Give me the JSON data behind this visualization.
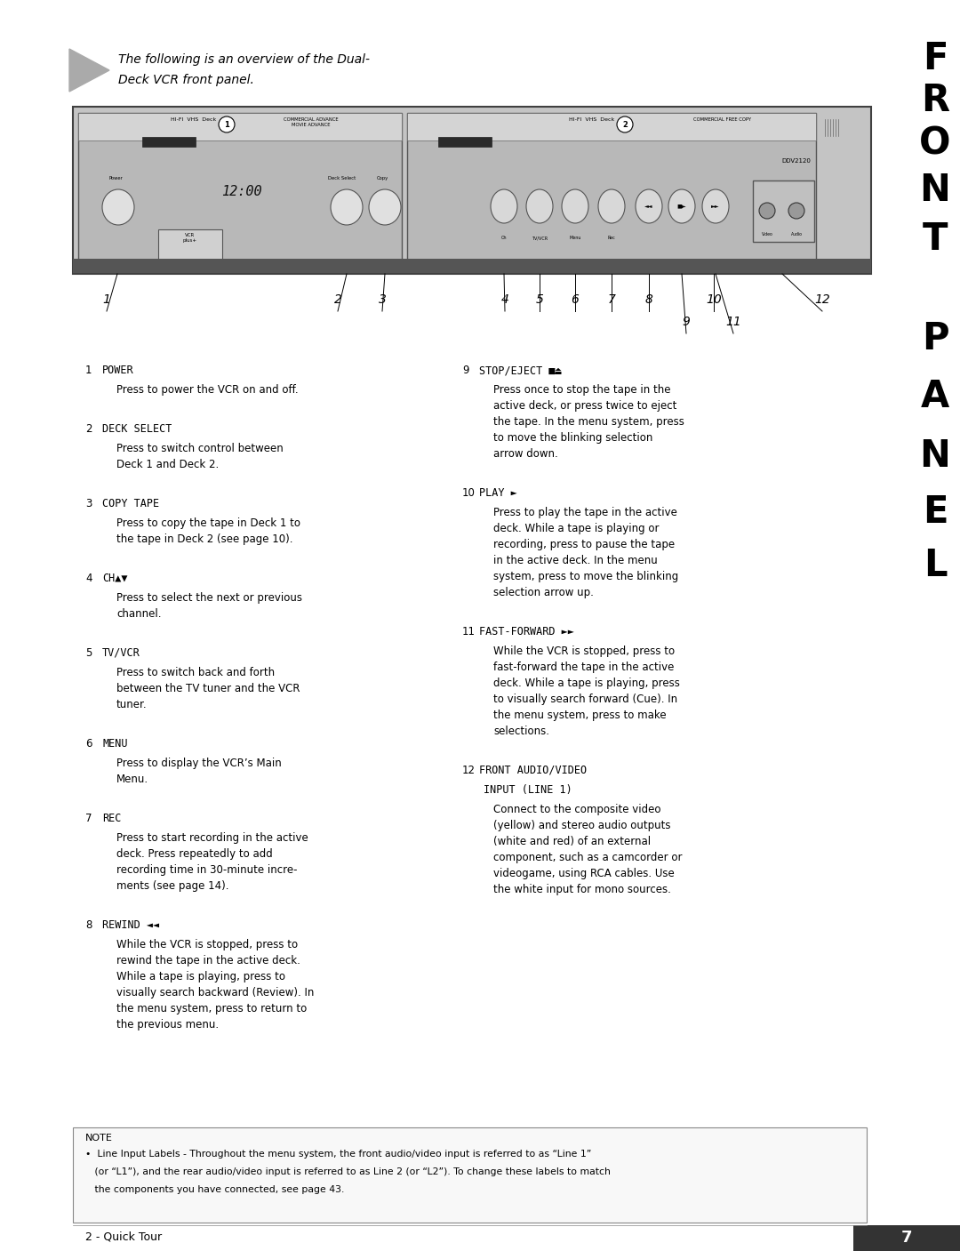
{
  "bg_color": "#ffffff",
  "page_width": 10.8,
  "page_height": 14.07,
  "intro_text_line1": "The following is an overview of the Dual-",
  "intro_text_line2": "Deck VCR front panel.",
  "vertical_title": [
    "F",
    "R",
    "O",
    "N",
    "T",
    "",
    "P",
    "A",
    "N",
    "E",
    "L"
  ],
  "vtitle_ypx": [
    45,
    92,
    140,
    193,
    248,
    300,
    360,
    425,
    492,
    555,
    615
  ],
  "items_left": [
    {
      "num": "1",
      "title": "POWER",
      "body": "Press to power the VCR on and off."
    },
    {
      "num": "2",
      "title": "DECK SELECT",
      "body": "Press to switch control between\nDeck 1 and Deck 2."
    },
    {
      "num": "3",
      "title": "COPY TAPE",
      "body": "Press to copy the tape in Deck 1 to\nthe tape in Deck 2 (see page 10)."
    },
    {
      "num": "4",
      "title": "CH▲▼",
      "body": "Press to select the next or previous\nchannel."
    },
    {
      "num": "5",
      "title": "TV/VCR",
      "body": "Press to switch back and forth\nbetween the TV tuner and the VCR\ntuner."
    },
    {
      "num": "6",
      "title": "MENU",
      "body": "Press to display the VCR’s Main\nMenu."
    },
    {
      "num": "7",
      "title": "REC",
      "body": "Press to start recording in the active\ndeck. Press repeatedly to add\nrecording time in 30-minute incre-\nments (see page 14)."
    },
    {
      "num": "8",
      "title": "REWIND ◄◄",
      "body": "While the VCR is stopped, press to\nrewind the tape in the active deck.\nWhile a tape is playing, press to\nvisually search backward (Review). In\nthe menu system, press to return to\nthe previous menu."
    }
  ],
  "items_right": [
    {
      "num": "9",
      "title": "STOP/EJECT ■⏏",
      "title2": null,
      "body": "Press once to stop the tape in the\nactive deck, or press twice to eject\nthe tape. In the menu system, press\nto move the blinking selection\narrow down."
    },
    {
      "num": "10",
      "title": "PLAY ►",
      "title2": null,
      "body": "Press to play the tape in the active\ndeck. While a tape is playing or\nrecording, press to pause the tape\nin the active deck. In the menu\nsystem, press to move the blinking\nselection arrow up."
    },
    {
      "num": "11",
      "title": "FAST-FORWARD ►►",
      "title2": null,
      "body": "While the VCR is stopped, press to\nfast-forward the tape in the active\ndeck. While a tape is playing, press\nto visually search forward (Cue). In\nthe menu system, press to make\nselections."
    },
    {
      "num": "12",
      "title": "FRONT AUDIO/VIDEO",
      "title2": "INPUT (LINE 1)",
      "body": "Connect to the composite video\n(yellow) and stereo audio outputs\n(white and red) of an external\ncomponent, such as a camcorder or\nvideogame, using RCA cables. Use\nthe white input for mono sources."
    }
  ],
  "note_title": "NOTE",
  "note_body_lines": [
    "•  Line Input Labels - Throughout the menu system, the front audio/video input is referred to as “Line 1”",
    "   (or “L1”), and the rear audio/video input is referred to as Line 2 (or “L2”). To change these labels to match",
    "   the components you have connected, see page 43."
  ],
  "footer_left": "2 - Quick Tour",
  "footer_page": "7"
}
